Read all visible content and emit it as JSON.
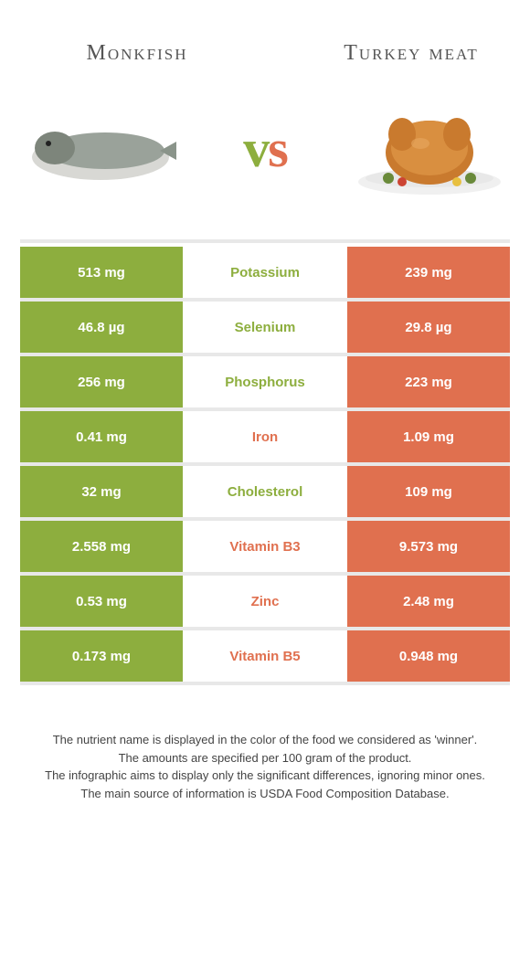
{
  "foods": {
    "left": {
      "name": "Monkfish",
      "color": "#8dae3e"
    },
    "right": {
      "name": "Turkey meat",
      "color": "#e0704f"
    }
  },
  "vs_label": "vs",
  "rows": [
    {
      "nutrient": "Potassium",
      "left": "513 mg",
      "right": "239 mg",
      "winner": "left"
    },
    {
      "nutrient": "Selenium",
      "left": "46.8 µg",
      "right": "29.8 µg",
      "winner": "left"
    },
    {
      "nutrient": "Phosphorus",
      "left": "256 mg",
      "right": "223 mg",
      "winner": "left"
    },
    {
      "nutrient": "Iron",
      "left": "0.41 mg",
      "right": "1.09 mg",
      "winner": "right"
    },
    {
      "nutrient": "Cholesterol",
      "left": "32 mg",
      "right": "109 mg",
      "winner": "left"
    },
    {
      "nutrient": "Vitamin B3",
      "left": "2.558 mg",
      "right": "9.573 mg",
      "winner": "right"
    },
    {
      "nutrient": "Zinc",
      "left": "0.53 mg",
      "right": "2.48 mg",
      "winner": "right"
    },
    {
      "nutrient": "Vitamin B5",
      "left": "0.173 mg",
      "right": "0.948 mg",
      "winner": "right"
    }
  ],
  "footer_lines": [
    "The nutrient name is displayed in the color of the food we considered as 'winner'.",
    "The amounts are specified per 100 gram of the product.",
    "The infographic aims to display only the significant differences, ignoring minor ones.",
    "The main source of information is USDA Food Composition Database."
  ]
}
